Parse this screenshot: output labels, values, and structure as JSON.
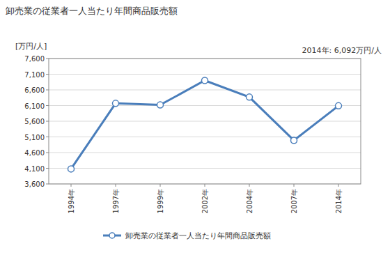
{
  "chart_data": {
    "type": "line",
    "title": "卸売業の従業者一人当たり年間商品販売額",
    "y_label": "[万円/人]",
    "annotation": "2014年: 6,092万円/人",
    "categories": [
      "1994年",
      "1997年",
      "1999年",
      "2002年",
      "2004年",
      "2007年",
      "2014年"
    ],
    "series": [
      {
        "name": "卸売業の従業者一人当たり年間商品販売額",
        "color": "#4a7ebb",
        "marker": "circle",
        "values": [
          4080,
          6170,
          6120,
          6900,
          6370,
          4990,
          6092
        ]
      }
    ],
    "ylim": [
      3600,
      7600
    ],
    "yticks": [
      {
        "value": 3600,
        "label": "3,600"
      },
      {
        "value": 4100,
        "label": "4,100"
      },
      {
        "value": 4600,
        "label": "4,600"
      },
      {
        "value": 5100,
        "label": "5,100"
      },
      {
        "value": 5600,
        "label": "5,600"
      },
      {
        "value": 6100,
        "label": "6,100"
      },
      {
        "value": 6600,
        "label": "6,600"
      },
      {
        "value": 7100,
        "label": "7,100"
      },
      {
        "value": 7600,
        "label": "7,600"
      }
    ],
    "grid": true,
    "legend": "bottom"
  }
}
